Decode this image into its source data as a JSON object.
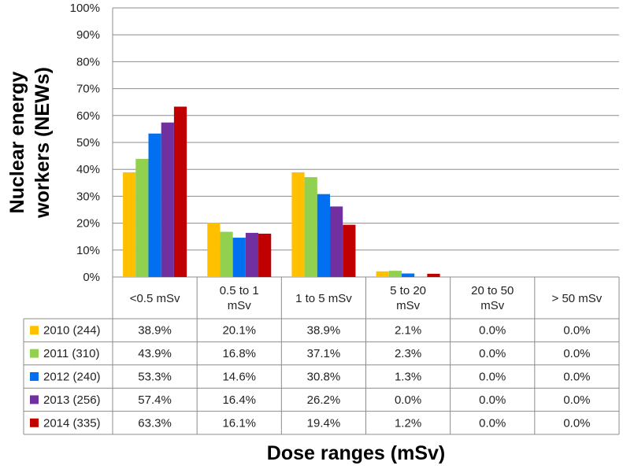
{
  "chart_data": {
    "type": "bar",
    "ylabel": "Nuclear energy workers (NEWs)",
    "xlabel": "Dose ranges (mSv)",
    "ylim": [
      0,
      100
    ],
    "yticks": [
      "0%",
      "10%",
      "20%",
      "30%",
      "40%",
      "50%",
      "60%",
      "70%",
      "80%",
      "90%",
      "100%"
    ],
    "grid": true,
    "categories": [
      "<0.5 mSv",
      "0.5 to 1 mSv",
      "1 to 5 mSv",
      "5 to 20 mSv",
      "20 to 50 mSv",
      "> 50 mSv"
    ],
    "category_lines": [
      [
        "<0.5 mSv"
      ],
      [
        "0.5 to 1",
        "mSv"
      ],
      [
        "1 to 5 mSv"
      ],
      [
        "5 to 20",
        "mSv"
      ],
      [
        "20 to 50",
        "mSv"
      ],
      [
        "> 50 mSv"
      ]
    ],
    "series": [
      {
        "name": "2010 (244)",
        "color": "#FFC000",
        "values": [
          38.9,
          20.1,
          38.9,
          2.1,
          0.0,
          0.0
        ],
        "labels": [
          "38.9%",
          "20.1%",
          "38.9%",
          "2.1%",
          "0.0%",
          "0.0%"
        ]
      },
      {
        "name": "2011 (310)",
        "color": "#92D050",
        "values": [
          43.9,
          16.8,
          37.1,
          2.3,
          0.0,
          0.0
        ],
        "labels": [
          "43.9%",
          "16.8%",
          "37.1%",
          "2.3%",
          "0.0%",
          "0.0%"
        ]
      },
      {
        "name": "2012 (240)",
        "color": "#0070F0",
        "values": [
          53.3,
          14.6,
          30.8,
          1.3,
          0.0,
          0.0
        ],
        "labels": [
          "53.3%",
          "14.6%",
          "30.8%",
          "1.3%",
          "0.0%",
          "0.0%"
        ]
      },
      {
        "name": "2013 (256)",
        "color": "#7030A0",
        "values": [
          57.4,
          16.4,
          26.2,
          0.0,
          0.0,
          0.0
        ],
        "labels": [
          "57.4%",
          "16.4%",
          "26.2%",
          "0.0%",
          "0.0%",
          "0.0%"
        ]
      },
      {
        "name": "2014 (335)",
        "color": "#C00000",
        "values": [
          63.3,
          16.1,
          19.4,
          1.2,
          0.0,
          0.0
        ],
        "labels": [
          "63.3%",
          "16.1%",
          "19.4%",
          "1.2%",
          "0.0%",
          "0.0%"
        ]
      }
    ]
  }
}
